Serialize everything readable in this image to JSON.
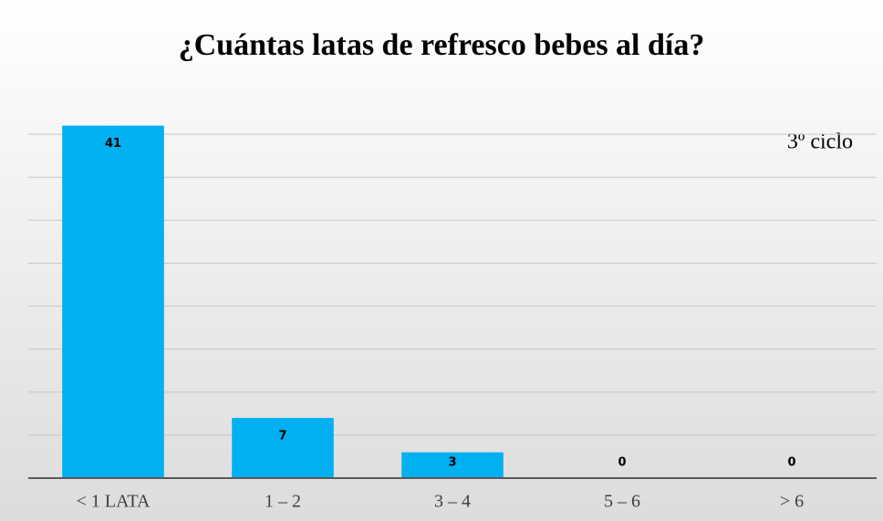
{
  "chart_data": {
    "type": "bar",
    "title": "¿Cuántas latas de refresco bebes al día?",
    "annotation": "3º ciclo",
    "categories": [
      "< 1 LATA",
      "1 – 2",
      "3 – 4",
      "5 – 6",
      "> 6"
    ],
    "values": [
      41,
      7,
      3,
      0,
      0
    ],
    "color": "#00b0f0",
    "ylim": [
      0,
      45
    ],
    "yticks": [
      0,
      5,
      10,
      15,
      20,
      25,
      30,
      35,
      40
    ],
    "grid": true
  }
}
